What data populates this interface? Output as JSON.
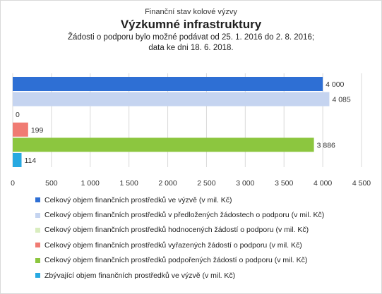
{
  "header": {
    "line1": "Finanční stav kolové výzvy",
    "title": "Výzkumné infrastruktury",
    "line3": "Žádosti o podporu bylo možné  podávat od 25. 1. 2016 do 2. 8. 2016;",
    "line4": "data ke dni 18. 6. 2018."
  },
  "chart_data": {
    "type": "bar",
    "orientation": "horizontal",
    "title": "Výzkumné infrastruktury",
    "xlim": [
      0,
      4500
    ],
    "xticks": [
      0,
      500,
      1000,
      1500,
      2000,
      2500,
      3000,
      3500,
      4000,
      4500
    ],
    "xtick_labels": [
      "0",
      "500",
      "1 000",
      "1 500",
      "2 000",
      "2 500",
      "3 000",
      "3 500",
      "4 000",
      "4 500"
    ],
    "grid": true,
    "legend_position": "bottom",
    "series": [
      {
        "name": "Celkový objem finančních prostředků ve výzvě (v mil. Kč)",
        "value": 4000,
        "label": "4 000",
        "color": "#2e6fd4"
      },
      {
        "name": "Celkový objem finančních prostředků v předložených žádostech o podporu (v mil. Kč)",
        "value": 4085,
        "label": "4 085",
        "color": "#c5d4f0"
      },
      {
        "name": "Celkový objem finančních prostředků hodnocených žádostí o podporu (v mil. Kč)",
        "value": 0,
        "label": "0",
        "color": "#d9edbf"
      },
      {
        "name": "Celkový objem finančních prostředků vyřazených žádostí o podporu (v mil. Kč)",
        "value": 199,
        "label": "199",
        "color": "#f07b73"
      },
      {
        "name": "Celkový objem finančních prostředků podpořených žádostí o podporu (v mil. Kč)",
        "value": 3886,
        "label": "3 886",
        "color": "#8cc63f"
      },
      {
        "name": "Zbývající objem finančních prostředků ve výzvě (v mil. Kč)",
        "value": 114,
        "label": "114",
        "color": "#27a9e1"
      }
    ]
  }
}
